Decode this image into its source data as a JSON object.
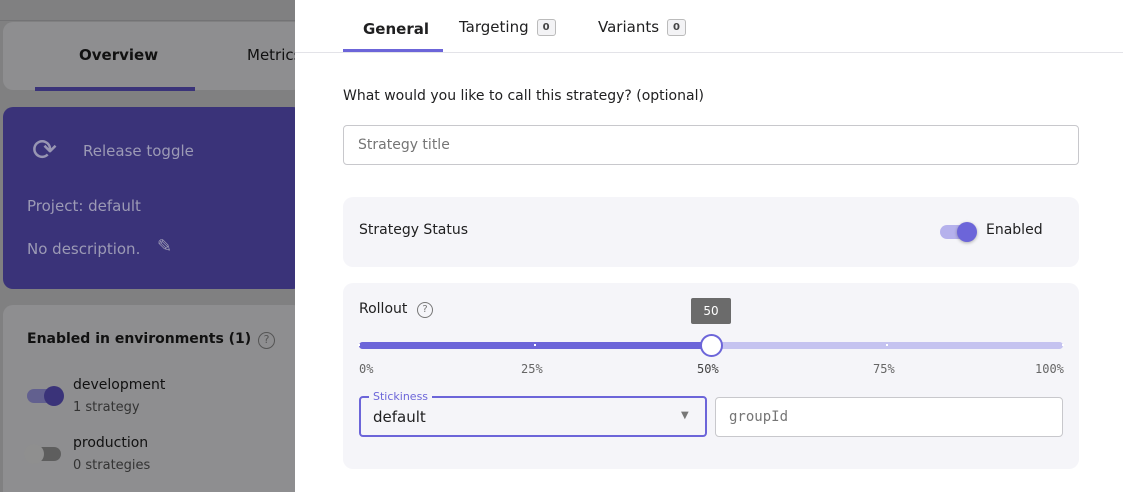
{
  "background": {
    "tabs": [
      "Overview",
      "Metrics"
    ],
    "feature_type": "Release toggle",
    "project": "Project: default",
    "description": "No description.",
    "environments_title": "Enabled in environments (1)",
    "environments": [
      {
        "name": "development",
        "strategies": "1 strategy",
        "enabled": true
      },
      {
        "name": "production",
        "strategies": "0 strategies",
        "enabled": false
      }
    ]
  },
  "drawer": {
    "tabs": [
      {
        "label": "General",
        "active": true
      },
      {
        "label": "Targeting",
        "count": "0"
      },
      {
        "label": "Variants",
        "count": "0"
      }
    ],
    "title_question": "What would you like to call this strategy? (optional)",
    "title_placeholder": "Strategy title",
    "title_value": "",
    "status_label": "Strategy Status",
    "status_toggle_label": "Enabled",
    "status_enabled": true,
    "rollout_label": "Rollout",
    "rollout_value": 50,
    "rollout_tooltip": "50",
    "rollout_ticks": [
      "0%",
      "25%",
      "50%",
      "75%",
      "100%"
    ],
    "stickiness_label": "Stickiness",
    "stickiness_value": "default",
    "group_id_placeholder": "groupId"
  },
  "colors": {
    "accent": "#6c65d9",
    "accent_light": "#c5c3f0"
  }
}
